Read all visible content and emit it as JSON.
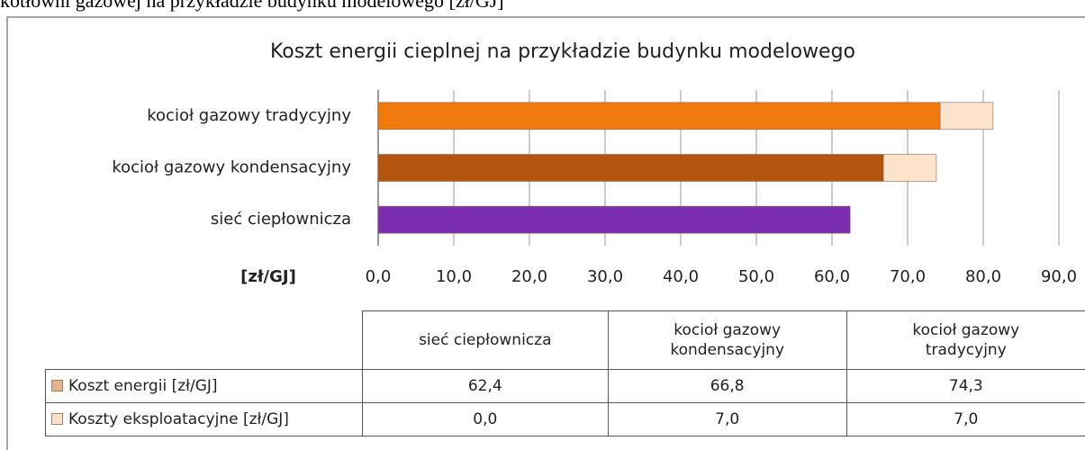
{
  "caption": "kotłowni gazowej na przykładzie budynku modelowego [zł/GJ]",
  "chart_data": {
    "type": "stacked-bar-horizontal",
    "title": "Koszt energii cieplnej na przykładzie budynku modelowego",
    "x_label": "[zł/GJ]",
    "categories": [
      "sieć ciepłownicza",
      "kocioł gazowy kondensacyjny",
      "kocioł gazowy tradycyjny"
    ],
    "series": [
      {
        "name": "Koszt energii [zł/GJ]",
        "color": "#e3b48a",
        "colors": [
          "#7b2fb0",
          "#b3540f",
          "#f07a0c"
        ],
        "values": [
          62.4,
          66.8,
          74.3
        ],
        "value_labels": [
          "62,4",
          "66,8",
          "74,3"
        ]
      },
      {
        "name": "Koszty eksploatacyjne [zł/GJ]",
        "color": "#fde3cc",
        "values": [
          0.0,
          7.0,
          7.0
        ],
        "value_labels": [
          "0,0",
          "7,0",
          "7,0"
        ]
      }
    ],
    "xlim": [
      0,
      90
    ],
    "xticks": [
      {
        "value": 0,
        "label": "0,0"
      },
      {
        "value": 10,
        "label": "10,0"
      },
      {
        "value": 20,
        "label": "20,0"
      },
      {
        "value": 30,
        "label": "30,0"
      },
      {
        "value": 40,
        "label": "40,0"
      },
      {
        "value": 50,
        "label": "50,0"
      },
      {
        "value": 60,
        "label": "60,0"
      },
      {
        "value": 70,
        "label": "70,0"
      },
      {
        "value": 80,
        "label": "80,0"
      },
      {
        "value": 90,
        "label": "90,0"
      }
    ],
    "grid": true,
    "data_table": true
  }
}
